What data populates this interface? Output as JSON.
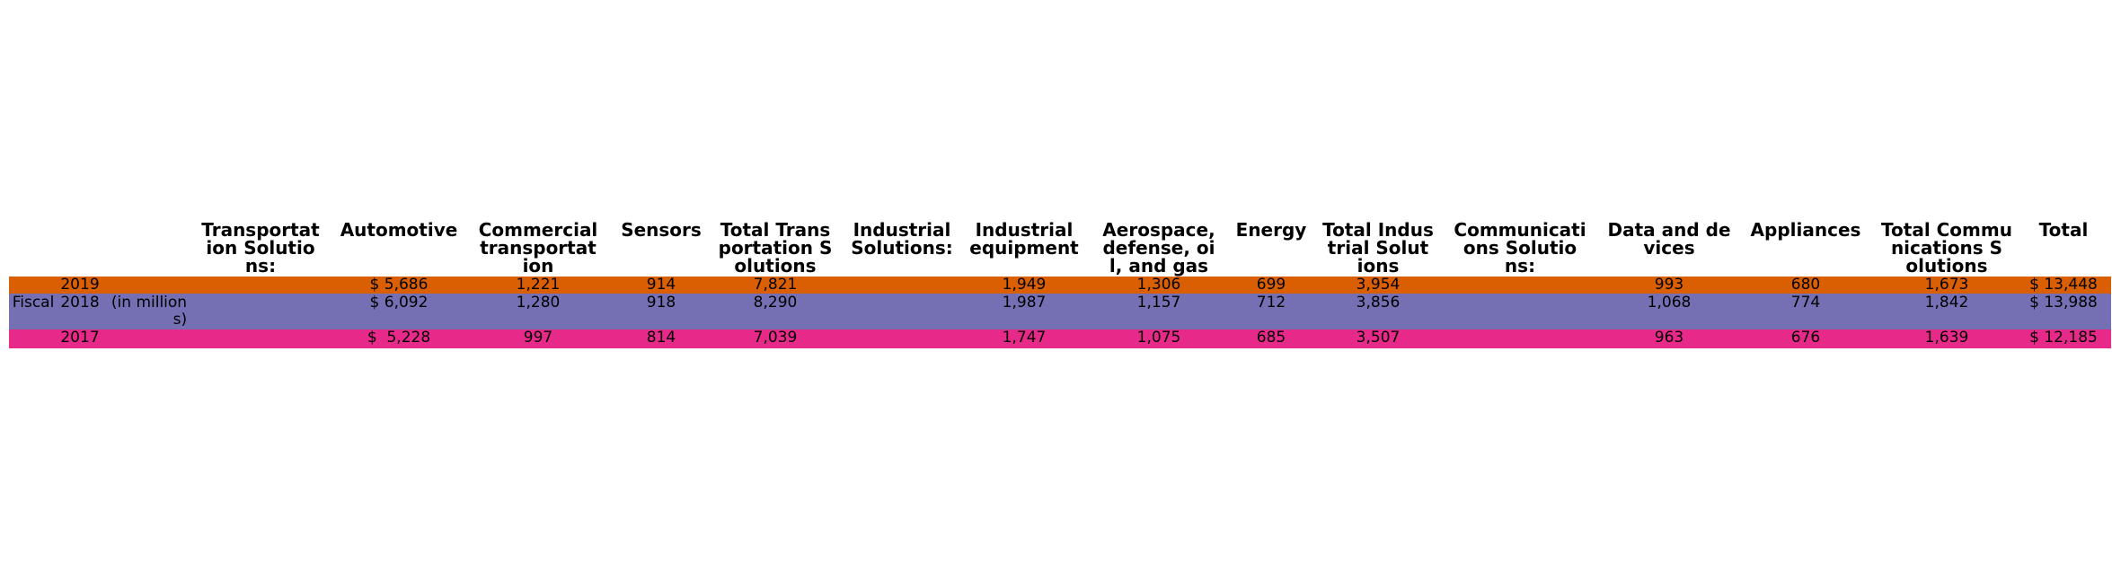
{
  "chart_data": {
    "type": "table",
    "row_group_label": "Fiscal",
    "unit_label": "(in million\n s)",
    "columns": [
      "Transportat\nion Solutio\nns:",
      "Automotive",
      "Commercial\ntransportat\nion",
      "Sensors",
      "Total Trans\nportation S\nolutions",
      "Industrial\nSolutions:",
      "Industrial\nequipment",
      "Aerospace,\ndefense, oi\nl, and gas",
      "Energy",
      "Total Indus\ntrial Solut\nions",
      "Communicati\nons Solutio\nns:",
      "Data and de\nvices",
      "Appliances",
      "Total Commu\nnications S\nolutions",
      "Total"
    ],
    "rows": [
      {
        "year": "2019",
        "color": "#d95f02",
        "cells": [
          "",
          "$ 5,686",
          "1,221",
          "914",
          "7,821",
          "",
          "1,949",
          "1,306",
          "699",
          "3,954",
          "",
          "993",
          "680",
          "1,673",
          "$ 13,448"
        ]
      },
      {
        "year": "2018",
        "color": "#7570b3",
        "cells": [
          "",
          "$ 6,092",
          "1,280",
          "918",
          "8,290",
          "",
          "1,987",
          "1,157",
          "712",
          "3,856",
          "",
          "1,068",
          "774",
          "1,842",
          "$ 13,988"
        ]
      },
      {
        "year": "2017",
        "color": "#e7298a",
        "cells": [
          "",
          "$  5,228",
          "997",
          "814",
          "7,039",
          "",
          "1,747",
          "1,075",
          "685",
          "3,507",
          "",
          "963",
          "676",
          "1,639",
          "$ 12,185"
        ]
      }
    ]
  }
}
